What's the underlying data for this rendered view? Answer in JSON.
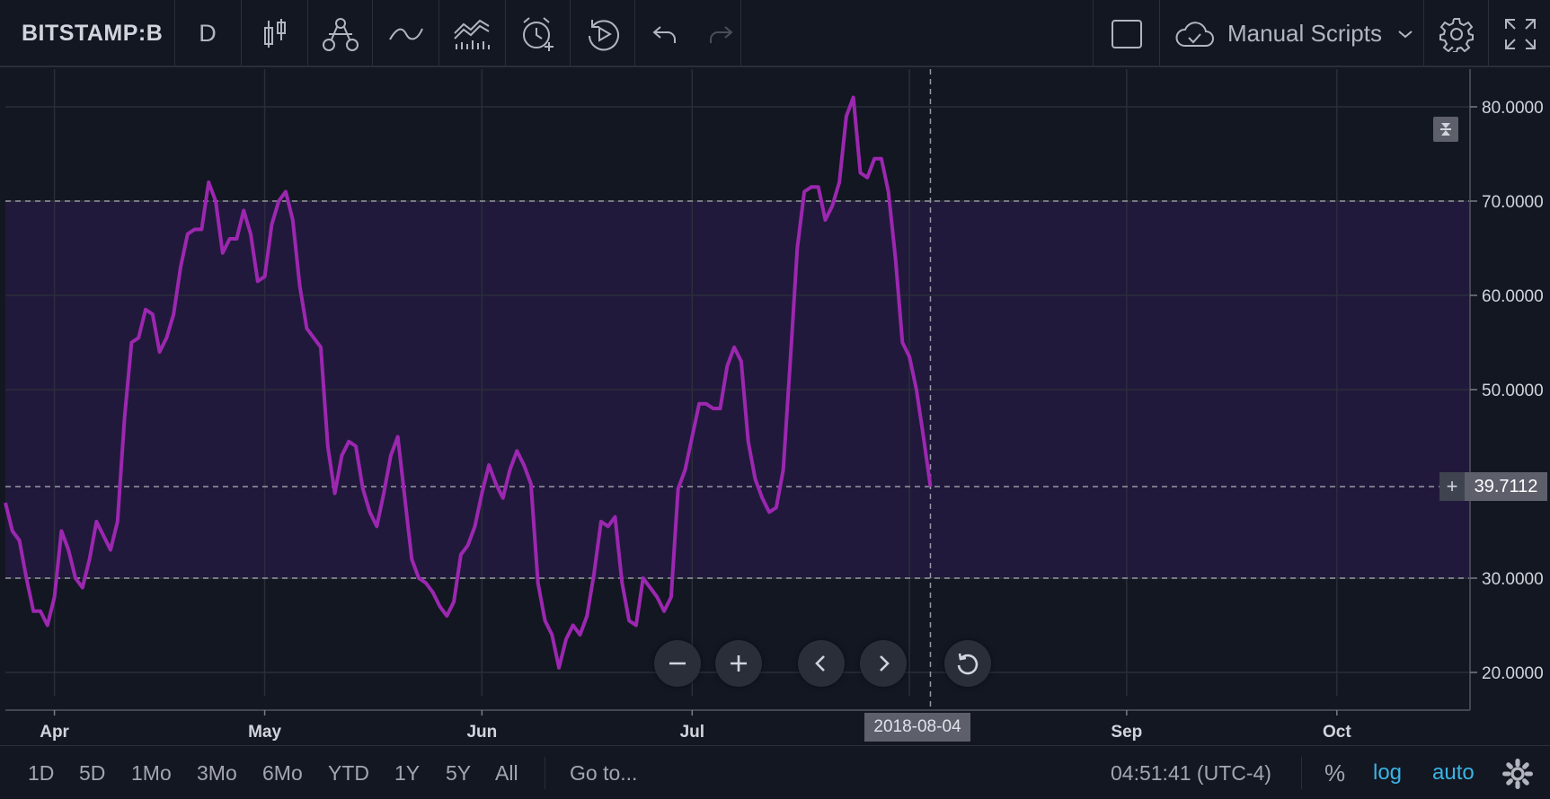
{
  "toolbar": {
    "symbol": "BITSTAMP:B",
    "interval": "D",
    "scripts_label": "Manual Scripts"
  },
  "chart_data": {
    "type": "line",
    "x_axis_labels": [
      "Apr",
      "May",
      "Jun",
      "Jul",
      "Sep",
      "Oct"
    ],
    "y_axis_labels": [
      "80.0000",
      "70.0000",
      "60.0000",
      "50.0000",
      "30.0000",
      "20.0000"
    ],
    "ylim": [
      16,
      84
    ],
    "x_start": "2018-03-25",
    "x_end": "2018-10-20",
    "band": {
      "lower": 30,
      "upper": 70,
      "color": "#21193b"
    },
    "line_color": "#9c27b0",
    "series": [
      {
        "x": [
          "2018-03-25",
          "2018-03-26",
          "2018-03-27",
          "2018-03-28",
          "2018-03-29",
          "2018-03-30",
          "2018-03-31",
          "2018-04-01",
          "2018-04-02",
          "2018-04-03",
          "2018-04-04",
          "2018-04-05",
          "2018-04-06",
          "2018-04-07",
          "2018-04-08",
          "2018-04-09",
          "2018-04-10",
          "2018-04-11",
          "2018-04-12",
          "2018-04-13",
          "2018-04-14",
          "2018-04-15",
          "2018-04-16",
          "2018-04-17",
          "2018-04-18",
          "2018-04-19",
          "2018-04-20",
          "2018-04-21",
          "2018-04-22",
          "2018-04-23",
          "2018-04-24",
          "2018-04-25",
          "2018-04-26",
          "2018-04-27",
          "2018-04-28",
          "2018-04-29",
          "2018-04-30",
          "2018-05-01",
          "2018-05-02",
          "2018-05-03",
          "2018-05-04",
          "2018-05-05",
          "2018-05-06",
          "2018-05-07",
          "2018-05-08",
          "2018-05-09",
          "2018-05-10",
          "2018-05-11",
          "2018-05-12",
          "2018-05-13",
          "2018-05-14",
          "2018-05-15",
          "2018-05-16",
          "2018-05-17",
          "2018-05-18",
          "2018-05-19",
          "2018-05-20",
          "2018-05-21",
          "2018-05-22",
          "2018-05-23",
          "2018-05-24",
          "2018-05-25",
          "2018-05-26",
          "2018-05-27",
          "2018-05-28",
          "2018-05-29",
          "2018-05-30",
          "2018-05-31",
          "2018-06-01",
          "2018-06-02",
          "2018-06-03",
          "2018-06-04",
          "2018-06-05",
          "2018-06-06",
          "2018-06-07",
          "2018-06-08",
          "2018-06-09",
          "2018-06-10",
          "2018-06-11",
          "2018-06-12",
          "2018-06-13",
          "2018-06-14",
          "2018-06-15",
          "2018-06-16",
          "2018-06-17",
          "2018-06-18",
          "2018-06-19",
          "2018-06-20",
          "2018-06-21",
          "2018-06-22",
          "2018-06-23",
          "2018-06-24",
          "2018-06-25",
          "2018-06-26",
          "2018-06-27",
          "2018-06-28",
          "2018-06-29",
          "2018-06-30",
          "2018-07-01",
          "2018-07-02",
          "2018-07-03",
          "2018-07-04",
          "2018-07-05",
          "2018-07-06",
          "2018-07-07",
          "2018-07-08",
          "2018-07-09",
          "2018-07-10",
          "2018-07-11",
          "2018-07-12",
          "2018-07-13",
          "2018-07-14",
          "2018-07-15",
          "2018-07-16",
          "2018-07-17",
          "2018-07-18",
          "2018-07-19",
          "2018-07-20",
          "2018-07-21",
          "2018-07-22",
          "2018-07-23",
          "2018-07-24",
          "2018-07-25",
          "2018-07-26",
          "2018-07-27",
          "2018-07-28",
          "2018-07-29",
          "2018-07-30",
          "2018-07-31",
          "2018-08-01",
          "2018-08-02",
          "2018-08-03",
          "2018-08-04"
        ],
        "values": [
          38,
          35,
          34,
          30,
          26.5,
          26.5,
          25,
          28,
          35,
          33,
          30,
          29,
          32,
          36,
          34.5,
          33,
          36,
          47,
          55,
          55.5,
          58.5,
          58,
          54,
          55.5,
          58,
          63,
          66.5,
          67,
          67,
          72,
          70,
          64.5,
          66,
          66,
          69,
          66.5,
          61.5,
          62,
          67.5,
          70,
          71,
          68,
          61,
          56.5,
          55.5,
          54.5,
          44,
          39,
          43,
          44.5,
          44,
          39.5,
          37,
          35.5,
          39,
          43,
          45,
          38.5,
          32,
          30,
          29.5,
          28.5,
          27,
          26,
          27.5,
          32.5,
          33.5,
          35.5,
          39,
          42,
          40,
          38.5,
          41.5,
          43.5,
          42,
          40,
          29.5,
          25.5,
          24,
          20.5,
          23.5,
          25,
          24,
          26,
          30.5,
          36,
          35.5,
          36.5,
          29.5,
          25.5,
          25,
          30,
          29,
          28,
          26.5,
          28,
          39.5,
          41.5,
          45,
          48.5,
          48.5,
          48,
          48,
          52.5,
          54.5,
          53,
          44.5,
          40.5,
          38.5,
          37,
          37.5,
          41.5,
          53,
          65,
          71,
          71.5,
          71.5,
          68,
          69.5,
          72,
          79,
          81,
          73,
          72.5,
          74.5,
          74.5,
          71,
          64,
          55,
          53.5,
          50,
          45,
          39.71
        ]
      }
    ],
    "last_value_label": "39.7112",
    "crosshair_date": "2018-08-04"
  },
  "bottombar": {
    "ranges": [
      "1D",
      "5D",
      "1Mo",
      "3Mo",
      "6Mo",
      "YTD",
      "1Y",
      "5Y",
      "All"
    ],
    "goto": "Go to...",
    "clock": "04:51:41 (UTC-4)",
    "percent": "%",
    "log": "log",
    "auto": "auto"
  }
}
